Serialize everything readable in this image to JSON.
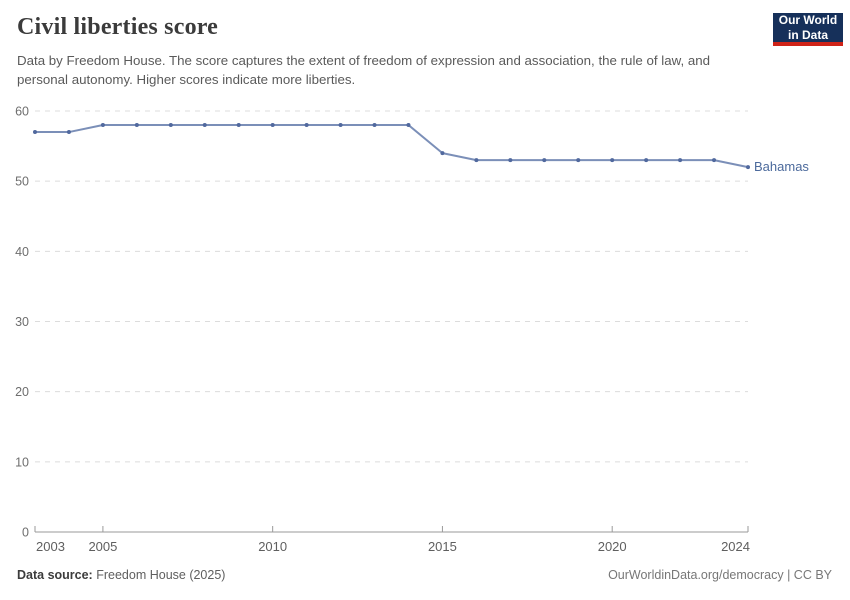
{
  "header": {
    "title": "Civil liberties score",
    "subtitle": "Data by Freedom House. The score captures the extent of freedom of expression and association, the rule of law, and personal autonomy. Higher scores indicate more liberties.",
    "logo": {
      "line1": "Our World",
      "line2": "in Data"
    }
  },
  "chart_data": {
    "type": "line",
    "title": "Civil liberties score",
    "x": [
      2003,
      2004,
      2005,
      2006,
      2007,
      2008,
      2009,
      2010,
      2011,
      2012,
      2013,
      2014,
      2015,
      2016,
      2017,
      2018,
      2019,
      2020,
      2021,
      2022,
      2023,
      2024
    ],
    "series": [
      {
        "name": "Bahamas",
        "values": [
          57,
          57,
          58,
          58,
          58,
          58,
          58,
          58,
          58,
          58,
          58,
          58,
          54,
          53,
          53,
          53,
          53,
          53,
          53,
          53,
          53,
          52
        ],
        "line_color": "#7b8fb8",
        "marker_color": "#51699e",
        "label_color": "#4c6a9c"
      }
    ],
    "xlim": [
      2003,
      2024
    ],
    "ylim": [
      0,
      60
    ],
    "xticks": [
      2003,
      2005,
      2010,
      2015,
      2020,
      2024
    ],
    "yticks": [
      0,
      10,
      20,
      30,
      40,
      50,
      60
    ],
    "grid": "horizontal-dashed",
    "legend_position": "end-of-line",
    "xlabel": "",
    "ylabel": ""
  },
  "footer": {
    "source_label": "Data source:",
    "source_value": "Freedom House (2025)",
    "rights": "OurWorldinData.org/democracy | CC BY"
  },
  "colors": {
    "gridline": "#dcdcdc",
    "axis": "#9a9a9a",
    "logo_bg": "#16305a",
    "logo_stripe": "#cf2318"
  }
}
